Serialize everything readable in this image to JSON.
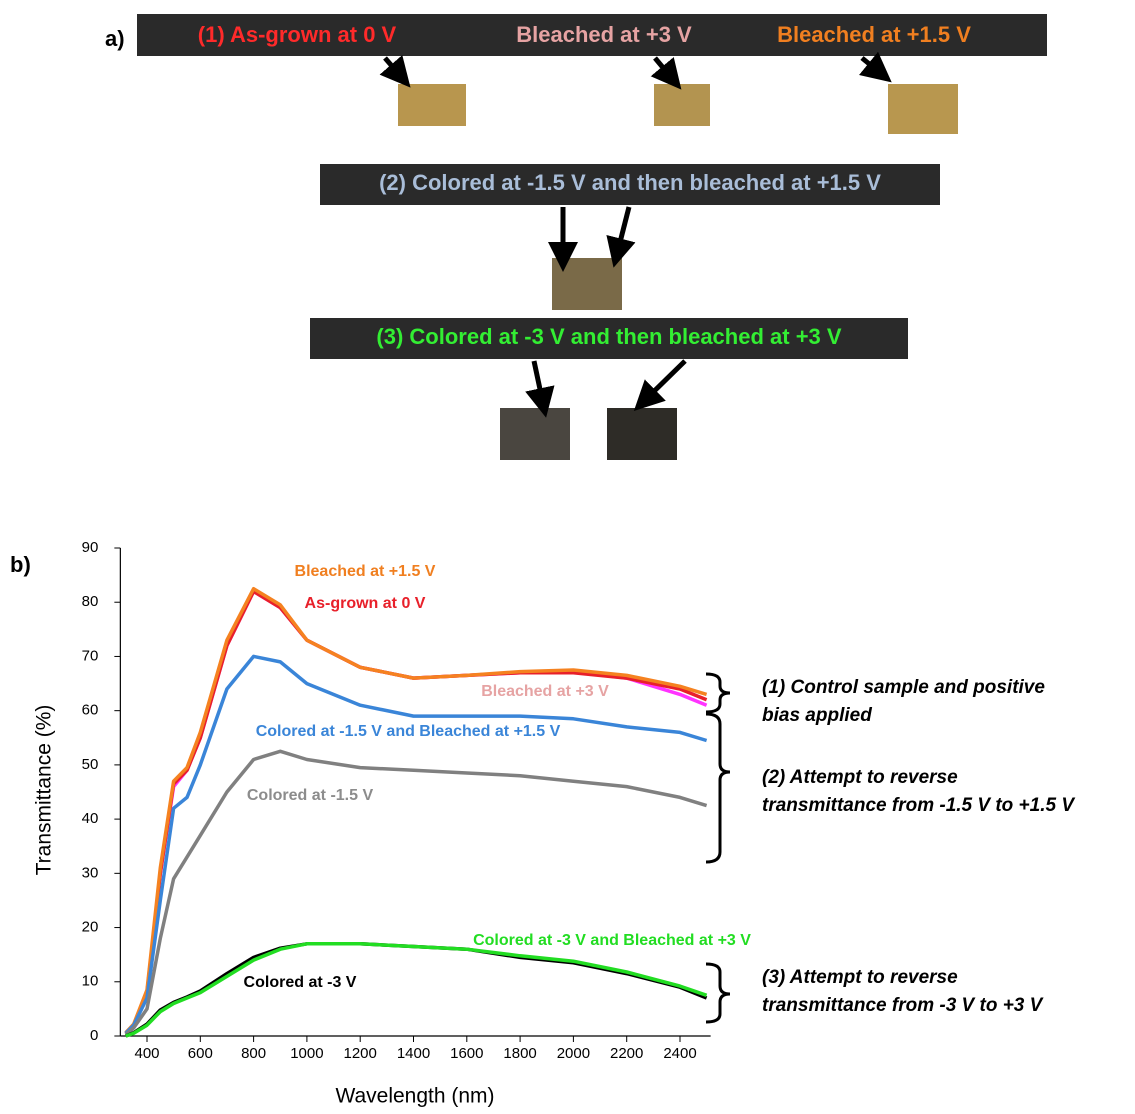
{
  "panel_a": {
    "label": "a)",
    "bars": [
      {
        "texts": [
          {
            "text": "(1) As-grown at 0 V",
            "color": "#ff2a2a"
          },
          {
            "text": "Bleached at +3 V",
            "color": "#e6a3a3"
          },
          {
            "text": "Bleached at +1.5 V",
            "color": "#f07f20"
          }
        ]
      },
      {
        "texts": [
          {
            "text": "(2) Colored at -1.5 V and then bleached at +1.5 V",
            "color": "#a9bdd8"
          }
        ]
      },
      {
        "texts": [
          {
            "text": "(3) Colored at -3 V and then bleached at +3 V",
            "color": "#33ee33"
          }
        ]
      }
    ]
  },
  "panel_b_label": "b)",
  "chart_data": {
    "type": "line",
    "x_label": "Wavelength (nm)",
    "y_label": "Transmittance (%)",
    "x": [
      320,
      350,
      400,
      450,
      500,
      550,
      600,
      700,
      800,
      900,
      1000,
      1200,
      1400,
      1600,
      1800,
      2000,
      2200,
      2400,
      2500
    ],
    "xlim": [
      300,
      2500
    ],
    "xticks": [
      400,
      600,
      800,
      1000,
      1200,
      1400,
      1600,
      1800,
      2000,
      2200,
      2400
    ],
    "ylim": [
      0,
      90
    ],
    "yticks": [
      0,
      10,
      20,
      30,
      40,
      50,
      60,
      70,
      80,
      90
    ],
    "grid": false,
    "series": [
      {
        "name": "Bleached at +3 V",
        "color": "#ff33ff",
        "label_color": "#e6a3a3",
        "values": [
          0.5,
          2,
          8,
          30,
          46,
          49,
          55,
          72,
          82,
          79,
          73,
          68,
          66,
          66.5,
          67,
          67.2,
          66,
          63,
          61
        ]
      },
      {
        "name": "As-grown at 0 V",
        "color": "#e8202a",
        "label_color": "#e8202a",
        "values": [
          0.5,
          2,
          8,
          30,
          46.5,
          49,
          55,
          72,
          82,
          79,
          73,
          68,
          66,
          66.5,
          67,
          67,
          66,
          64,
          62
        ]
      },
      {
        "name": "Bleached at +1.5 V",
        "color": "#f58220",
        "label_color": "#f07f20",
        "values": [
          0.6,
          2.2,
          8.5,
          31,
          47,
          49.5,
          56,
          73,
          82.5,
          79.5,
          73,
          68,
          66,
          66.5,
          67.2,
          67.5,
          66.5,
          64.5,
          63
        ]
      },
      {
        "name": "Colored at -1.5 V and Bleached at +1.5 V",
        "color": "#3a85d8",
        "label_color": "#3a85d8",
        "values": [
          0.5,
          2,
          7,
          25,
          42,
          44,
          50,
          64,
          70,
          69,
          65,
          61,
          59,
          59,
          59,
          58.5,
          57,
          56,
          54.5
        ]
      },
      {
        "name": "Colored at -1.5 V",
        "color": "#808080",
        "label_color": "#8c8c8c",
        "values": [
          0.3,
          1.5,
          5,
          18,
          29,
          33,
          37,
          45,
          51,
          52.5,
          51,
          49.5,
          49,
          48.5,
          48,
          47,
          46,
          44,
          42.5
        ]
      },
      {
        "name": "Colored at -3 V",
        "color": "#000000",
        "label_color": "#000000",
        "values": [
          0,
          0.6,
          2.2,
          4.8,
          6.2,
          7.2,
          8.3,
          11.5,
          14.5,
          16.2,
          17,
          17,
          16.5,
          16,
          14.5,
          13.5,
          11.5,
          9,
          7
        ]
      },
      {
        "name": "Colored at -3 V and Bleached at +3 V",
        "color": "#22dd22",
        "label_color": "#22dd22",
        "values": [
          0,
          0.5,
          2,
          4.5,
          6,
          7,
          8,
          11,
          14,
          16,
          17,
          17,
          16.5,
          16,
          14.8,
          13.8,
          11.8,
          9.2,
          7.5
        ]
      }
    ],
    "annotations": [
      {
        "lines": [
          "(1) Control sample and positive",
          "bias applied"
        ]
      },
      {
        "lines": [
          "(2) Attempt to reverse",
          "transmittance from -1.5 V to +1.5 V"
        ]
      },
      {
        "lines": [
          "(3) Attempt to reverse",
          "transmittance from -3 V to +3 V"
        ]
      }
    ]
  }
}
